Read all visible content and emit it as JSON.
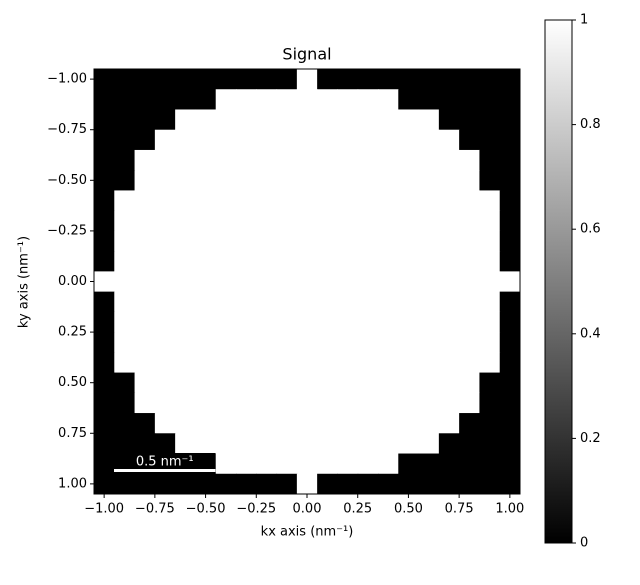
{
  "chart_data": {
    "type": "heatmap",
    "title": "Signal",
    "x_label": "kx axis (nm⁻¹)",
    "y_label": "ky axis (nm⁻¹)",
    "colormap": "gray",
    "x": [
      -1.0,
      -0.9,
      -0.8,
      -0.7,
      -0.6,
      -0.5,
      -0.4,
      -0.3,
      -0.2,
      -0.1,
      0.0,
      0.1,
      0.2,
      0.3,
      0.4,
      0.5,
      0.6,
      0.7,
      0.8,
      0.9,
      1.0
    ],
    "y": [
      -1.0,
      -0.9,
      -0.8,
      -0.7,
      -0.6,
      -0.5,
      -0.4,
      -0.3,
      -0.2,
      -0.1,
      0.0,
      0.1,
      0.2,
      0.3,
      0.4,
      0.5,
      0.6,
      0.7,
      0.8,
      0.9,
      1.0
    ],
    "z": [
      [
        0,
        0,
        0,
        0,
        0,
        0,
        0,
        0,
        0,
        0,
        1,
        0,
        0,
        0,
        0,
        0,
        0,
        0,
        0,
        0,
        0
      ],
      [
        0,
        0,
        0,
        0,
        0,
        0,
        1,
        1,
        1,
        1,
        1,
        1,
        1,
        1,
        1,
        0,
        0,
        0,
        0,
        0,
        0
      ],
      [
        0,
        0,
        0,
        0,
        1,
        1,
        1,
        1,
        1,
        1,
        1,
        1,
        1,
        1,
        1,
        1,
        1,
        0,
        0,
        0,
        0
      ],
      [
        0,
        0,
        0,
        1,
        1,
        1,
        1,
        1,
        1,
        1,
        1,
        1,
        1,
        1,
        1,
        1,
        1,
        1,
        0,
        0,
        0
      ],
      [
        0,
        0,
        1,
        1,
        1,
        1,
        1,
        1,
        1,
        1,
        1,
        1,
        1,
        1,
        1,
        1,
        1,
        1,
        1,
        0,
        0
      ],
      [
        0,
        0,
        1,
        1,
        1,
        1,
        1,
        1,
        1,
        1,
        1,
        1,
        1,
        1,
        1,
        1,
        1,
        1,
        1,
        0,
        0
      ],
      [
        0,
        1,
        1,
        1,
        1,
        1,
        1,
        1,
        1,
        1,
        1,
        1,
        1,
        1,
        1,
        1,
        1,
        1,
        1,
        1,
        0
      ],
      [
        0,
        1,
        1,
        1,
        1,
        1,
        1,
        1,
        1,
        1,
        1,
        1,
        1,
        1,
        1,
        1,
        1,
        1,
        1,
        1,
        0
      ],
      [
        0,
        1,
        1,
        1,
        1,
        1,
        1,
        1,
        1,
        1,
        1,
        1,
        1,
        1,
        1,
        1,
        1,
        1,
        1,
        1,
        0
      ],
      [
        0,
        1,
        1,
        1,
        1,
        1,
        1,
        1,
        1,
        1,
        1,
        1,
        1,
        1,
        1,
        1,
        1,
        1,
        1,
        1,
        0
      ],
      [
        1,
        1,
        1,
        1,
        1,
        1,
        1,
        1,
        1,
        1,
        1,
        1,
        1,
        1,
        1,
        1,
        1,
        1,
        1,
        1,
        1
      ],
      [
        0,
        1,
        1,
        1,
        1,
        1,
        1,
        1,
        1,
        1,
        1,
        1,
        1,
        1,
        1,
        1,
        1,
        1,
        1,
        1,
        0
      ],
      [
        0,
        1,
        1,
        1,
        1,
        1,
        1,
        1,
        1,
        1,
        1,
        1,
        1,
        1,
        1,
        1,
        1,
        1,
        1,
        1,
        0
      ],
      [
        0,
        1,
        1,
        1,
        1,
        1,
        1,
        1,
        1,
        1,
        1,
        1,
        1,
        1,
        1,
        1,
        1,
        1,
        1,
        1,
        0
      ],
      [
        0,
        1,
        1,
        1,
        1,
        1,
        1,
        1,
        1,
        1,
        1,
        1,
        1,
        1,
        1,
        1,
        1,
        1,
        1,
        1,
        0
      ],
      [
        0,
        0,
        1,
        1,
        1,
        1,
        1,
        1,
        1,
        1,
        1,
        1,
        1,
        1,
        1,
        1,
        1,
        1,
        1,
        0,
        0
      ],
      [
        0,
        0,
        1,
        1,
        1,
        1,
        1,
        1,
        1,
        1,
        1,
        1,
        1,
        1,
        1,
        1,
        1,
        1,
        1,
        0,
        0
      ],
      [
        0,
        0,
        0,
        1,
        1,
        1,
        1,
        1,
        1,
        1,
        1,
        1,
        1,
        1,
        1,
        1,
        1,
        1,
        0,
        0,
        0
      ],
      [
        0,
        0,
        0,
        0,
        1,
        1,
        1,
        1,
        1,
        1,
        1,
        1,
        1,
        1,
        1,
        1,
        1,
        0,
        0,
        0,
        0
      ],
      [
        0,
        0,
        0,
        0,
        0,
        0,
        1,
        1,
        1,
        1,
        1,
        1,
        1,
        1,
        1,
        0,
        0,
        0,
        0,
        0,
        0
      ],
      [
        0,
        0,
        0,
        0,
        0,
        0,
        0,
        0,
        0,
        0,
        1,
        0,
        0,
        0,
        0,
        0,
        0,
        0,
        0,
        0,
        0
      ]
    ],
    "xlim": [
      -1.05,
      1.05
    ],
    "ylim": [
      1.05,
      -1.05
    ],
    "xticks": [
      {
        "value": -1,
        "label": "−1.00"
      },
      {
        "value": -0.75,
        "label": "−0.75"
      },
      {
        "value": -0.5,
        "label": "−0.50"
      },
      {
        "value": -0.25,
        "label": "−0.25"
      },
      {
        "value": 0,
        "label": "0.00"
      },
      {
        "value": 0.25,
        "label": "0.25"
      },
      {
        "value": 0.5,
        "label": "0.50"
      },
      {
        "value": 0.75,
        "label": "0.75"
      },
      {
        "value": 1,
        "label": "1.00"
      }
    ],
    "yticks": [
      {
        "value": -1,
        "label": "−1.00"
      },
      {
        "value": -0.75,
        "label": "−0.75"
      },
      {
        "value": -0.5,
        "label": "−0.50"
      },
      {
        "value": -0.25,
        "label": "−0.25"
      },
      {
        "value": 0,
        "label": "0.00"
      },
      {
        "value": 0.25,
        "label": "0.25"
      },
      {
        "value": 0.5,
        "label": "0.50"
      },
      {
        "value": 0.75,
        "label": "0.75"
      },
      {
        "value": 1,
        "label": "1.00"
      }
    ],
    "clim": [
      0,
      1
    ],
    "cticks": [
      0,
      0.2,
      0.4,
      0.6,
      0.8,
      1
    ],
    "scalebar": {
      "length": 0.5,
      "label": "0.5 nm⁻¹"
    }
  }
}
